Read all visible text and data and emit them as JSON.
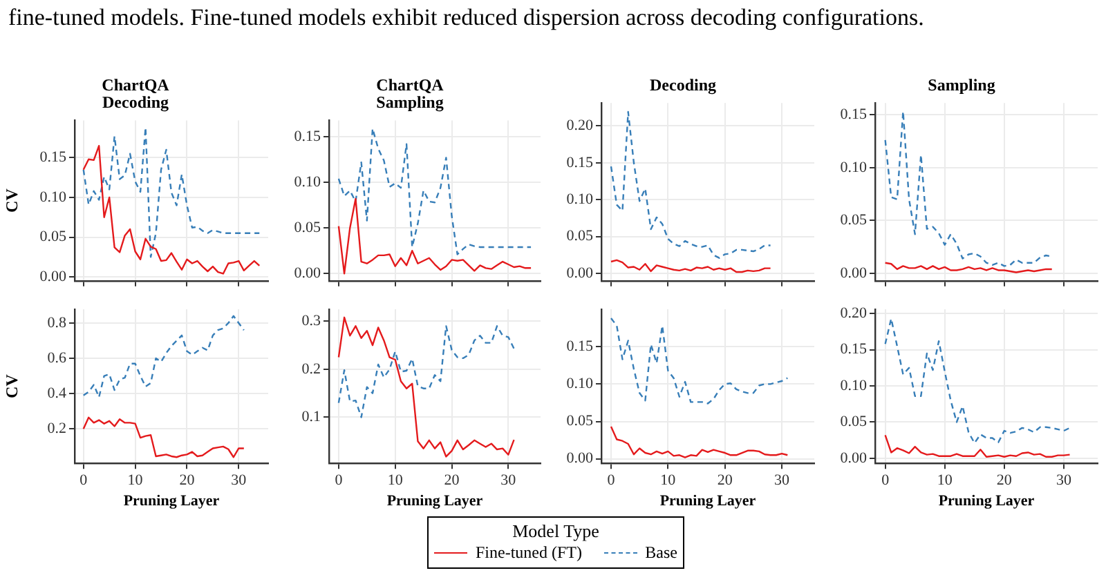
{
  "chart_data": [
    {
      "type": "line",
      "title": "ChartQA\nDecoding",
      "ylabel": "CV",
      "annotations": [
        "fine-tuned models. Fine-tuned models exhibit reduced dispersion across decoding configurations."
      ],
      "legend": "bottom",
      "legend_title": "Model Type",
      "grid": true,
      "tick_labels": "y",
      "x": [
        0,
        1,
        2,
        3,
        4,
        5,
        6,
        7,
        8,
        9,
        10,
        11,
        12,
        13,
        14,
        15,
        16,
        17,
        18,
        19,
        20,
        21,
        22,
        23,
        24,
        25,
        26,
        27,
        28,
        29,
        30,
        31,
        32,
        33,
        34
      ],
      "xlim": [
        -1.7,
        35.7
      ],
      "xticks": [
        0,
        10,
        20,
        30
      ],
      "ylim": [
        -0.005,
        0.197
      ],
      "yticks": [
        {
          "value": 0,
          "label": "0.00"
        },
        {
          "value": 0.05,
          "label": "0.05"
        },
        {
          "value": 0.1,
          "label": "0.10"
        },
        {
          "value": 0.15,
          "label": "0.15"
        }
      ],
      "series": [
        {
          "name": "Fine-tuned (FT)",
          "color": "#e41a1c",
          "line_style": "solid",
          "values": [
            0.135,
            0.148,
            0.147,
            0.165,
            0.075,
            0.1,
            0.037,
            0.031,
            0.052,
            0.06,
            0.032,
            0.022,
            0.048,
            0.038,
            0.035,
            0.02,
            0.021,
            0.03,
            0.019,
            0.009,
            0.022,
            0.017,
            0.02,
            0.013,
            0.007,
            0.013,
            0.006,
            0.004,
            0.017,
            0.018,
            0.02,
            0.008,
            0.014,
            0.02,
            0.014
          ]
        },
        {
          "name": "Base",
          "color": "#377eb8",
          "line_style": "dashed",
          "values": [
            0.135,
            0.091,
            0.108,
            0.097,
            0.126,
            0.11,
            0.177,
            0.123,
            0.128,
            0.155,
            0.12,
            0.107,
            0.188,
            0.025,
            0.055,
            0.135,
            0.16,
            0.106,
            0.09,
            0.129,
            0.09,
            0.062,
            0.063,
            0.058,
            0.055,
            0.059,
            0.057,
            0.055,
            0.055,
            0.055,
            0.055,
            0.055,
            0.055,
            0.055,
            0.055
          ]
        }
      ]
    },
    {
      "type": "line",
      "title": "ChartQA\nSampling",
      "grid": true,
      "tick_labels": "y",
      "x": [
        0,
        1,
        2,
        3,
        4,
        5,
        6,
        7,
        8,
        9,
        10,
        11,
        12,
        13,
        14,
        15,
        16,
        17,
        18,
        19,
        20,
        21,
        22,
        23,
        24,
        25,
        26,
        27,
        28,
        29,
        30,
        31,
        32,
        33,
        34
      ],
      "xlim": [
        -1.7,
        35.7
      ],
      "xticks": [
        0,
        10,
        20,
        30
      ],
      "ylim": [
        -0.008,
        0.168
      ],
      "yticks": [
        {
          "value": 0,
          "label": "0.00"
        },
        {
          "value": 0.05,
          "label": "0.05"
        },
        {
          "value": 0.1,
          "label": "0.10"
        },
        {
          "value": 0.15,
          "label": "0.15"
        }
      ],
      "series": [
        {
          "color": "#e41a1c",
          "line_style": "solid",
          "values": [
            0.052,
            0,
            0.05,
            0.082,
            0.013,
            0.011,
            0.015,
            0.02,
            0.02,
            0.021,
            0.008,
            0.017,
            0.009,
            0.025,
            0.011,
            0.014,
            0.017,
            0.01,
            0.004,
            0.008,
            0.015,
            0.014,
            0.015,
            0.009,
            0.003,
            0.009,
            0.006,
            0.005,
            0.009,
            0.013,
            0.01,
            0.007,
            0.008,
            0.006,
            0.006
          ]
        },
        {
          "color": "#377eb8",
          "line_style": "dashed",
          "values": [
            0.104,
            0.085,
            0.091,
            0.079,
            0.122,
            0.058,
            0.159,
            0.137,
            0.124,
            0.095,
            0.099,
            0.094,
            0.142,
            0.029,
            0.055,
            0.091,
            0.079,
            0.078,
            0.094,
            0.127,
            0.063,
            0.021,
            0.027,
            0.032,
            0.03,
            0.029,
            0.029,
            0.029,
            0.029,
            0.029,
            0.029,
            0.029,
            0.029,
            0.029,
            0.029
          ]
        }
      ]
    },
    {
      "type": "line",
      "title": "Decoding",
      "grid": true,
      "tick_labels": "y",
      "x": [
        0,
        1,
        2,
        3,
        4,
        5,
        6,
        7,
        8,
        9,
        10,
        11,
        12,
        13,
        14,
        15,
        16,
        17,
        18,
        19,
        20,
        21,
        22,
        23,
        24,
        25,
        26,
        27,
        28
      ],
      "xlim": [
        -1.7,
        35.7
      ],
      "xticks": [
        0,
        10,
        20,
        30
      ],
      "ylim": [
        -0.01,
        0.231
      ],
      "yticks": [
        {
          "value": 0,
          "label": "0.00"
        },
        {
          "value": 0.05,
          "label": "0.05"
        },
        {
          "value": 0.1,
          "label": "0.10"
        },
        {
          "value": 0.15,
          "label": "0.15"
        },
        {
          "value": 0.2,
          "label": "0.20"
        }
      ],
      "series": [
        {
          "color": "#e41a1c",
          "line_style": "solid",
          "values": [
            0.016,
            0.018,
            0.015,
            0.008,
            0.009,
            0.005,
            0.013,
            0.003,
            0.011,
            0.009,
            0.007,
            0.005,
            0.004,
            0.006,
            0.004,
            0.008,
            0.007,
            0.009,
            0.005,
            0.007,
            0.005,
            0.007,
            0.002,
            0.002,
            0.004,
            0.003,
            0.004,
            0.007,
            0.007
          ]
        },
        {
          "color": "#377eb8",
          "line_style": "dashed",
          "values": [
            0.145,
            0.093,
            0.085,
            0.219,
            0.15,
            0.098,
            0.115,
            0.06,
            0.076,
            0.067,
            0.047,
            0.04,
            0.037,
            0.044,
            0.04,
            0.037,
            0.036,
            0.038,
            0.025,
            0.021,
            0.026,
            0.027,
            0.032,
            0.032,
            0.031,
            0.03,
            0.033,
            0.038,
            0.038
          ]
        }
      ]
    },
    {
      "type": "line",
      "title": "Sampling",
      "grid": true,
      "tick_labels": "y",
      "x": [
        0,
        1,
        2,
        3,
        4,
        5,
        6,
        7,
        8,
        9,
        10,
        11,
        12,
        13,
        14,
        15,
        16,
        17,
        18,
        19,
        20,
        21,
        22,
        23,
        24,
        25,
        26,
        27,
        28
      ],
      "xlim": [
        -1.7,
        35.7
      ],
      "xticks": [
        0,
        10,
        20,
        30
      ],
      "ylim": [
        -0.007,
        0.161
      ],
      "yticks": [
        {
          "value": 0,
          "label": "0.00"
        },
        {
          "value": 0.05,
          "label": "0.05"
        },
        {
          "value": 0.1,
          "label": "0.10"
        },
        {
          "value": 0.15,
          "label": "0.15"
        }
      ],
      "series": [
        {
          "color": "#e41a1c",
          "line_style": "solid",
          "values": [
            0.01,
            0.009,
            0.004,
            0.007,
            0.005,
            0.005,
            0.007,
            0.004,
            0.007,
            0.004,
            0.006,
            0.003,
            0.003,
            0.004,
            0.006,
            0.004,
            0.005,
            0.003,
            0.005,
            0.003,
            0.003,
            0.002,
            0.001,
            0.002,
            0.003,
            0.002,
            0.003,
            0.004,
            0.004
          ]
        },
        {
          "color": "#377eb8",
          "line_style": "dashed",
          "values": [
            0.126,
            0.072,
            0.07,
            0.153,
            0.07,
            0.037,
            0.112,
            0.042,
            0.044,
            0.038,
            0.027,
            0.037,
            0.028,
            0.014,
            0.018,
            0.019,
            0.016,
            0.01,
            0.008,
            0.01,
            0.007,
            0.008,
            0.013,
            0.01,
            0.01,
            0.01,
            0.015,
            0.017,
            0.016
          ]
        }
      ]
    },
    {
      "type": "line",
      "xlabel": "Pruning Layer",
      "ylabel": "CV",
      "grid": true,
      "x": [
        0,
        1,
        2,
        3,
        4,
        5,
        6,
        7,
        8,
        9,
        10,
        11,
        12,
        13,
        14,
        15,
        16,
        17,
        18,
        19,
        20,
        21,
        22,
        23,
        24,
        25,
        26,
        27,
        28,
        29,
        30,
        31
      ],
      "xlim": [
        -1.7,
        35.7
      ],
      "xticks": [
        0,
        10,
        20,
        30
      ],
      "ylim": [
        0.005,
        0.878
      ],
      "yticks": [
        0.2,
        0.4,
        0.6,
        0.8
      ],
      "series": [
        {
          "color": "#e41a1c",
          "line_style": "solid",
          "values": [
            0.2,
            0.265,
            0.235,
            0.25,
            0.23,
            0.245,
            0.215,
            0.255,
            0.235,
            0.235,
            0.23,
            0.15,
            0.16,
            0.165,
            0.045,
            0.05,
            0.055,
            0.045,
            0.04,
            0.05,
            0.055,
            0.07,
            0.045,
            0.05,
            0.07,
            0.09,
            0.095,
            0.1,
            0.085,
            0.04,
            0.09,
            0.09
          ]
        },
        {
          "color": "#377eb8",
          "line_style": "dashed",
          "values": [
            0.39,
            0.41,
            0.45,
            0.38,
            0.5,
            0.51,
            0.42,
            0.48,
            0.49,
            0.57,
            0.57,
            0.5,
            0.44,
            0.46,
            0.6,
            0.58,
            0.63,
            0.67,
            0.7,
            0.73,
            0.64,
            0.62,
            0.64,
            0.66,
            0.645,
            0.73,
            0.76,
            0.77,
            0.8,
            0.84,
            0.8,
            0.76
          ]
        }
      ]
    },
    {
      "type": "line",
      "xlabel": "Pruning Layer",
      "grid": true,
      "x": [
        0,
        1,
        2,
        3,
        4,
        5,
        6,
        7,
        8,
        9,
        10,
        11,
        12,
        13,
        14,
        15,
        16,
        17,
        18,
        19,
        20,
        21,
        22,
        23,
        24,
        25,
        26,
        27,
        28,
        29,
        30,
        31
      ],
      "xlim": [
        -1.7,
        35.7
      ],
      "xticks": [
        0,
        10,
        20,
        30
      ],
      "ylim": [
        0.004,
        0.325
      ],
      "yticks": [
        0.1,
        0.2,
        0.3
      ],
      "series": [
        {
          "color": "#e41a1c",
          "line_style": "solid",
          "values": [
            0.225,
            0.308,
            0.27,
            0.29,
            0.265,
            0.28,
            0.25,
            0.287,
            0.26,
            0.225,
            0.22,
            0.175,
            0.16,
            0.17,
            0.05,
            0.035,
            0.052,
            0.035,
            0.048,
            0.018,
            0.03,
            0.052,
            0.033,
            0.042,
            0.052,
            0.045,
            0.038,
            0.045,
            0.033,
            0.035,
            0.022,
            0.053
          ]
        },
        {
          "color": "#377eb8",
          "line_style": "dashed",
          "values": [
            0.13,
            0.198,
            0.133,
            0.135,
            0.1,
            0.163,
            0.15,
            0.21,
            0.183,
            0.2,
            0.237,
            0.195,
            0.197,
            0.222,
            0.165,
            0.16,
            0.16,
            0.188,
            0.175,
            0.29,
            0.24,
            0.225,
            0.223,
            0.23,
            0.26,
            0.27,
            0.255,
            0.255,
            0.29,
            0.27,
            0.267,
            0.243
          ]
        }
      ]
    },
    {
      "type": "line",
      "xlabel": "Pruning Layer",
      "grid": true,
      "x": [
        0,
        1,
        2,
        3,
        4,
        5,
        6,
        7,
        8,
        9,
        10,
        11,
        12,
        13,
        14,
        15,
        16,
        17,
        18,
        19,
        20,
        21,
        22,
        23,
        24,
        25,
        26,
        27,
        28,
        29,
        30,
        31
      ],
      "xlim": [
        -1.7,
        35.7
      ],
      "xticks": [
        0,
        10,
        20,
        30
      ],
      "ylim": [
        -0.006,
        0.2
      ],
      "yticks": [
        {
          "value": 0,
          "label": "0.00"
        },
        {
          "value": 0.05,
          "label": "0.05"
        },
        {
          "value": 0.1,
          "label": "0.10"
        },
        {
          "value": 0.15,
          "label": "0.15"
        }
      ],
      "series": [
        {
          "color": "#e41a1c",
          "line_style": "solid",
          "values": [
            0.043,
            0.026,
            0.024,
            0.02,
            0.006,
            0.014,
            0.008,
            0.006,
            0.01,
            0.007,
            0.01,
            0.004,
            0.005,
            0.002,
            0.005,
            0.004,
            0.012,
            0.009,
            0.012,
            0.01,
            0.008,
            0.005,
            0.005,
            0.008,
            0.011,
            0.011,
            0.01,
            0.006,
            0.005,
            0.005,
            0.007,
            0.005
          ]
        },
        {
          "color": "#377eb8",
          "line_style": "dashed",
          "values": [
            0.188,
            0.178,
            0.133,
            0.158,
            0.12,
            0.088,
            0.078,
            0.153,
            0.128,
            0.178,
            0.118,
            0.108,
            0.083,
            0.103,
            0.076,
            0.076,
            0.076,
            0.074,
            0.08,
            0.092,
            0.1,
            0.101,
            0.093,
            0.09,
            0.088,
            0.088,
            0.098,
            0.1,
            0.1,
            0.102,
            0.104,
            0.108
          ]
        }
      ]
    },
    {
      "type": "line",
      "xlabel": "Pruning Layer",
      "grid": true,
      "x": [
        0,
        1,
        2,
        3,
        4,
        5,
        6,
        7,
        8,
        9,
        10,
        11,
        12,
        13,
        14,
        15,
        16,
        17,
        18,
        19,
        20,
        21,
        22,
        23,
        24,
        25,
        26,
        27,
        28,
        29,
        30,
        31
      ],
      "xlim": [
        -1.7,
        35.7
      ],
      "xticks": [
        0,
        10,
        20,
        30
      ],
      "ylim": [
        -0.007,
        0.206
      ],
      "yticks": [
        {
          "value": 0,
          "label": "0.00"
        },
        {
          "value": 0.05,
          "label": "0.05"
        },
        {
          "value": 0.1,
          "label": "0.10"
        },
        {
          "value": 0.15,
          "label": "0.15"
        },
        {
          "value": 0.2,
          "label": "0.20"
        }
      ],
      "series": [
        {
          "color": "#e41a1c",
          "line_style": "solid",
          "values": [
            0.032,
            0.008,
            0.014,
            0.011,
            0.007,
            0.016,
            0.008,
            0.005,
            0.006,
            0.003,
            0.003,
            0.003,
            0.006,
            0.003,
            0.003,
            0.003,
            0.012,
            0.002,
            0.003,
            0.004,
            0.002,
            0.004,
            0.003,
            0.007,
            0.008,
            0.005,
            0.006,
            0.002,
            0.002,
            0.004,
            0.004,
            0.005
          ]
        },
        {
          "color": "#377eb8",
          "line_style": "dashed",
          "values": [
            0.158,
            0.193,
            0.155,
            0.116,
            0.125,
            0.086,
            0.086,
            0.145,
            0.122,
            0.162,
            0.12,
            0.08,
            0.05,
            0.072,
            0.036,
            0.021,
            0.033,
            0.028,
            0.028,
            0.022,
            0.038,
            0.035,
            0.037,
            0.042,
            0.04,
            0.036,
            0.043,
            0.043,
            0.042,
            0.04,
            0.038,
            0.042
          ]
        }
      ]
    }
  ]
}
